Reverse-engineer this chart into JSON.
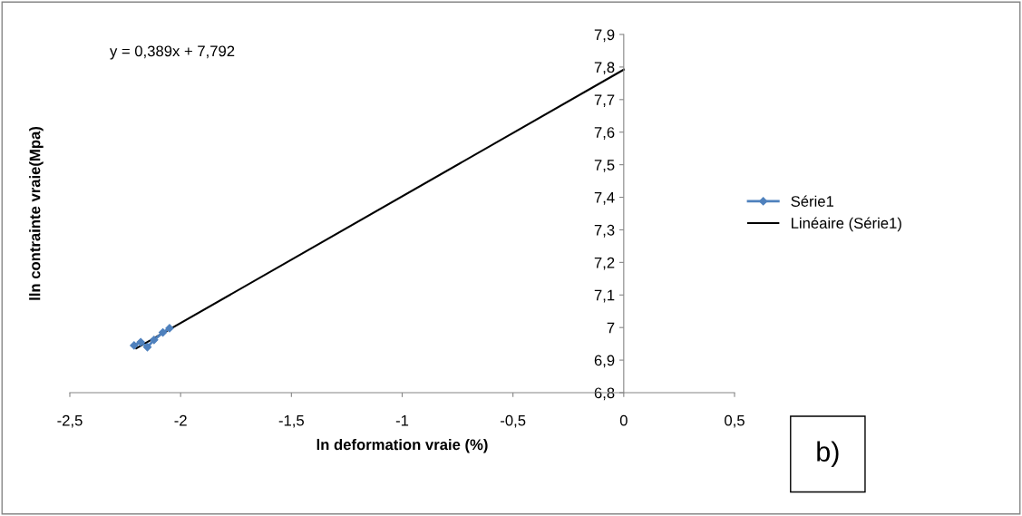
{
  "chart_data": {
    "type": "line",
    "xlabel": "ln deformation vraie (%)",
    "ylabel": "lln contrainte vraie(Mpa)",
    "series": [
      {
        "name": "Série1",
        "color": "#4f81bd",
        "marker": "diamond",
        "x": [
          -2.21,
          -2.18,
          -2.15,
          -2.12,
          -2.08,
          -2.05
        ],
        "values": [
          6.945,
          6.955,
          6.94,
          6.962,
          6.985,
          6.998
        ]
      },
      {
        "name": "Linéaire (Série1)",
        "type": "line",
        "color": "#000000",
        "marker": "none",
        "x": [
          -2.2,
          0
        ],
        "values": [
          6.936,
          7.792
        ]
      }
    ],
    "xlim": [
      -2.5,
      0.5
    ],
    "xticks": [
      {
        "value": -2.5,
        "label": "-2,5"
      },
      {
        "value": -2,
        "label": "-2"
      },
      {
        "value": -1.5,
        "label": "-1,5"
      },
      {
        "value": -1,
        "label": "-1"
      },
      {
        "value": -0.5,
        "label": "-0,5"
      },
      {
        "value": 0,
        "label": "0"
      },
      {
        "value": 0.5,
        "label": "0,5"
      }
    ],
    "ylim": [
      6.8,
      7.9
    ],
    "yticks": [
      {
        "value": 6.8,
        "label": "6,8"
      },
      {
        "value": 6.9,
        "label": "6,9"
      },
      {
        "value": 7,
        "label": "7"
      },
      {
        "value": 7.1,
        "label": "7,1"
      },
      {
        "value": 7.2,
        "label": "7,2"
      },
      {
        "value": 7.3,
        "label": "7,3"
      },
      {
        "value": 7.4,
        "label": "7,4"
      },
      {
        "value": 7.5,
        "label": "7,5"
      },
      {
        "value": 7.6,
        "label": "7,6"
      },
      {
        "value": 7.7,
        "label": "7,7"
      },
      {
        "value": 7.8,
        "label": "7,8"
      },
      {
        "value": 7.9,
        "label": "7,9"
      }
    ],
    "annotations": [
      "y = 0,389x + 7,792",
      "b)"
    ],
    "legend": "right",
    "grid": false
  }
}
